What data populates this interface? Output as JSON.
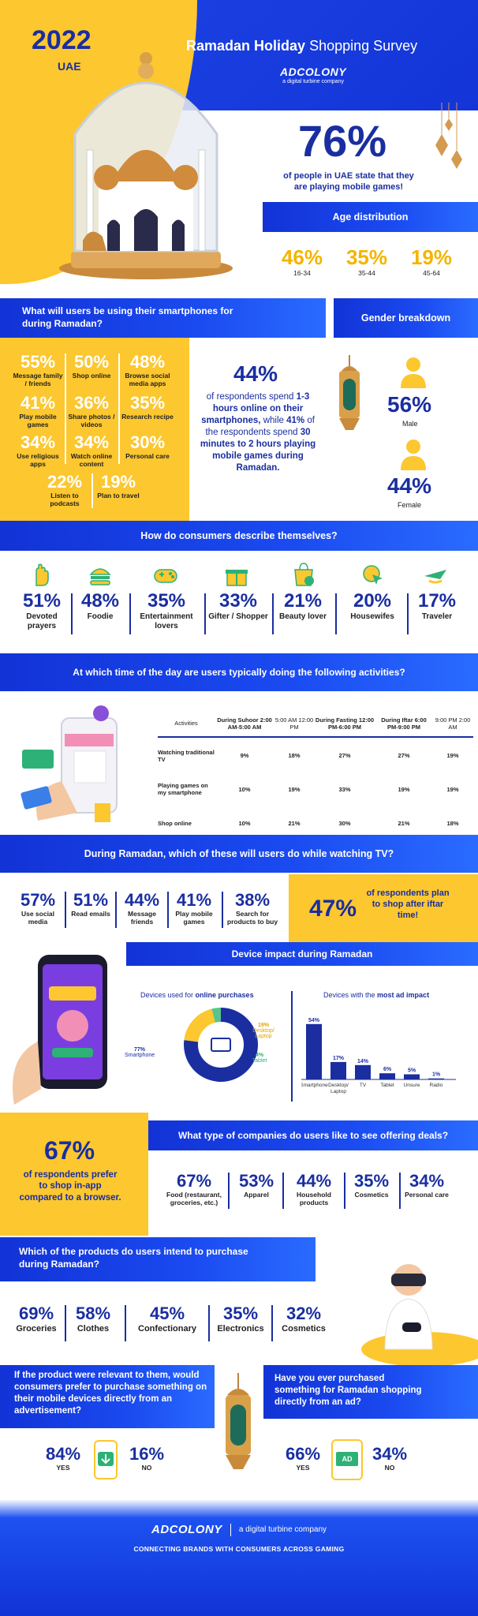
{
  "header": {
    "year": "2022",
    "country": "UAE",
    "title_bold": "Ramadan Holiday",
    "title_light": "Shopping Survey",
    "brand": "ADCOLONY",
    "brand_sub": "a digital turbine company"
  },
  "hero_stat": {
    "value": "76%",
    "text": "of people in UAE state that they are playing mobile games!"
  },
  "age": {
    "title": "Age distribution",
    "items": [
      {
        "value": "46%",
        "label": "16-34"
      },
      {
        "value": "35%",
        "label": "35-44"
      },
      {
        "value": "19%",
        "label": "45-64"
      }
    ]
  },
  "usage": {
    "title": "What will users be using their smartphones for during Ramadan?",
    "items": [
      {
        "value": "55%",
        "label": "Message family / friends"
      },
      {
        "value": "50%",
        "label": "Shop online"
      },
      {
        "value": "48%",
        "label": "Browse social media apps"
      },
      {
        "value": "41%",
        "label": "Play mobile games"
      },
      {
        "value": "36%",
        "label": "Share photos / videos"
      },
      {
        "value": "35%",
        "label": "Research recipe"
      },
      {
        "value": "34%",
        "label": "Use religious apps"
      },
      {
        "value": "34%",
        "label": "Watch online content"
      },
      {
        "value": "30%",
        "label": "Personal care"
      },
      {
        "value": "22%",
        "label": "Listen to podcasts"
      },
      {
        "value": "19%",
        "label": "Plan to travel"
      }
    ]
  },
  "online_time": {
    "value": "44%",
    "p1": "of respondents spend",
    "p2": "1-3 hours online on their smartphones,",
    "p3": "while",
    "p4": "41%",
    "p5": "of the respondents spend",
    "p6": "30 minutes to 2 hours playing mobile games during Ramadan."
  },
  "gender": {
    "title": "Gender breakdown",
    "male_value": "56%",
    "male_label": "Male",
    "female_value": "44%",
    "female_label": "Female"
  },
  "describe": {
    "title": "How do consumers describe themselves?",
    "items": [
      {
        "value": "51%",
        "label": "Devoted prayers",
        "icon": "hand-icon"
      },
      {
        "value": "48%",
        "label": "Foodie",
        "icon": "burger-icon"
      },
      {
        "value": "35%",
        "label": "Entertainment lovers",
        "icon": "gamepad-icon"
      },
      {
        "value": "33%",
        "label": "Gifter / Shopper",
        "icon": "gift-icon"
      },
      {
        "value": "21%",
        "label": "Beauty lover",
        "icon": "shopping-bag-icon"
      },
      {
        "value": "20%",
        "label": "Housewifes",
        "icon": "cursor-icon"
      },
      {
        "value": "17%",
        "label": "Traveler",
        "icon": "plane-icon"
      }
    ]
  },
  "activities": {
    "title": "At which time of the day are users typically doing the following activities?",
    "headers": [
      "Activities",
      "During Suhoor 2:00 AM-5:00 AM",
      "5:00 AM 12:00 PM",
      "During Fasting 12:00 PM-6:00 PM",
      "During Iftar 6:00 PM-9:00 PM",
      "9:00 PM 2:00 AM"
    ],
    "rows": [
      {
        "name": "Watching traditional TV",
        "values": [
          "9%",
          "18%",
          "27%",
          "27%",
          "19%"
        ]
      },
      {
        "name": "Playing games on my smartphone",
        "values": [
          "10%",
          "19%",
          "33%",
          "19%",
          "19%"
        ]
      },
      {
        "name": "Shop online",
        "values": [
          "10%",
          "21%",
          "30%",
          "21%",
          "18%"
        ]
      }
    ]
  },
  "tv": {
    "title": "During Ramadan, which of these will users do while watching TV?",
    "items": [
      {
        "value": "57%",
        "label": "Use social media"
      },
      {
        "value": "51%",
        "label": "Read emails"
      },
      {
        "value": "44%",
        "label": "Message friends"
      },
      {
        "value": "41%",
        "label": "Play mobile games"
      },
      {
        "value": "38%",
        "label": "Search for products to buy"
      }
    ],
    "iftar_value": "47%",
    "iftar_text": "of respondents plan to shop after iftar time!"
  },
  "device": {
    "title": "Device impact during Ramadan",
    "donut_title_a": "Devices used for",
    "donut_title_b": "online purchases",
    "donut": [
      {
        "label": "Smartphone",
        "value": 77,
        "text": "77%",
        "color": "#1a2ea0"
      },
      {
        "label": "Desktop/ Laptop",
        "value": 19,
        "text": "19%",
        "color": "#fcc72f"
      },
      {
        "label": "Tablet",
        "value": 4,
        "text": "4%",
        "color": "#57c58a"
      }
    ],
    "bars_title_a": "Devices with the",
    "bars_title_b": "most ad impact",
    "bars": [
      {
        "label": "Smartphone",
        "value": 54,
        "text": "54%"
      },
      {
        "label": "Desktop/ Laptop",
        "value": 17,
        "text": "17%"
      },
      {
        "label": "TV",
        "value": 14,
        "text": "14%"
      },
      {
        "label": "Tablet",
        "value": 6,
        "text": "6%"
      },
      {
        "label": "Unsure",
        "value": 5,
        "text": "5%"
      },
      {
        "label": "Radio",
        "value": 1,
        "text": "1%"
      }
    ]
  },
  "inapp": {
    "value": "67%",
    "text": "of respondents prefer to shop in-app compared to a browser."
  },
  "companies": {
    "title": "What type of companies do users like to see offering deals?",
    "items": [
      {
        "value": "67%",
        "label": "Food (restaurant, groceries, etc.)"
      },
      {
        "value": "53%",
        "label": "Apparel"
      },
      {
        "value": "44%",
        "label": "Household products"
      },
      {
        "value": "35%",
        "label": "Cosmetics"
      },
      {
        "value": "34%",
        "label": "Personal care"
      }
    ]
  },
  "products": {
    "title": "Which of the products do users intend to purchase during Ramadan?",
    "items": [
      {
        "value": "69%",
        "label": "Groceries"
      },
      {
        "value": "58%",
        "label": "Clothes"
      },
      {
        "value": "45%",
        "label": "Confectionary"
      },
      {
        "value": "35%",
        "label": "Electronics"
      },
      {
        "value": "32%",
        "label": "Cosmetics"
      }
    ]
  },
  "ad_purchase_relevant": {
    "question": "If the product were relevant to them, would consumers prefer to purchase something on their mobile devices directly from an advertisement?",
    "yes_value": "84%",
    "yes_label": "YES",
    "no_value": "16%",
    "no_label": "NO"
  },
  "ad_purchase_ever": {
    "question": "Have you ever purchased something for Ramadan shopping directly from an ad?",
    "yes_value": "66%",
    "yes_label": "YES",
    "no_value": "34%",
    "no_label": "NO",
    "ad_badge": "AD"
  },
  "footer": {
    "brand": "ADCOLONY",
    "sub": "a digital turbine company",
    "tagline": "CONNECTING BRANDS WITH CONSUMERS ACROSS GAMING"
  }
}
